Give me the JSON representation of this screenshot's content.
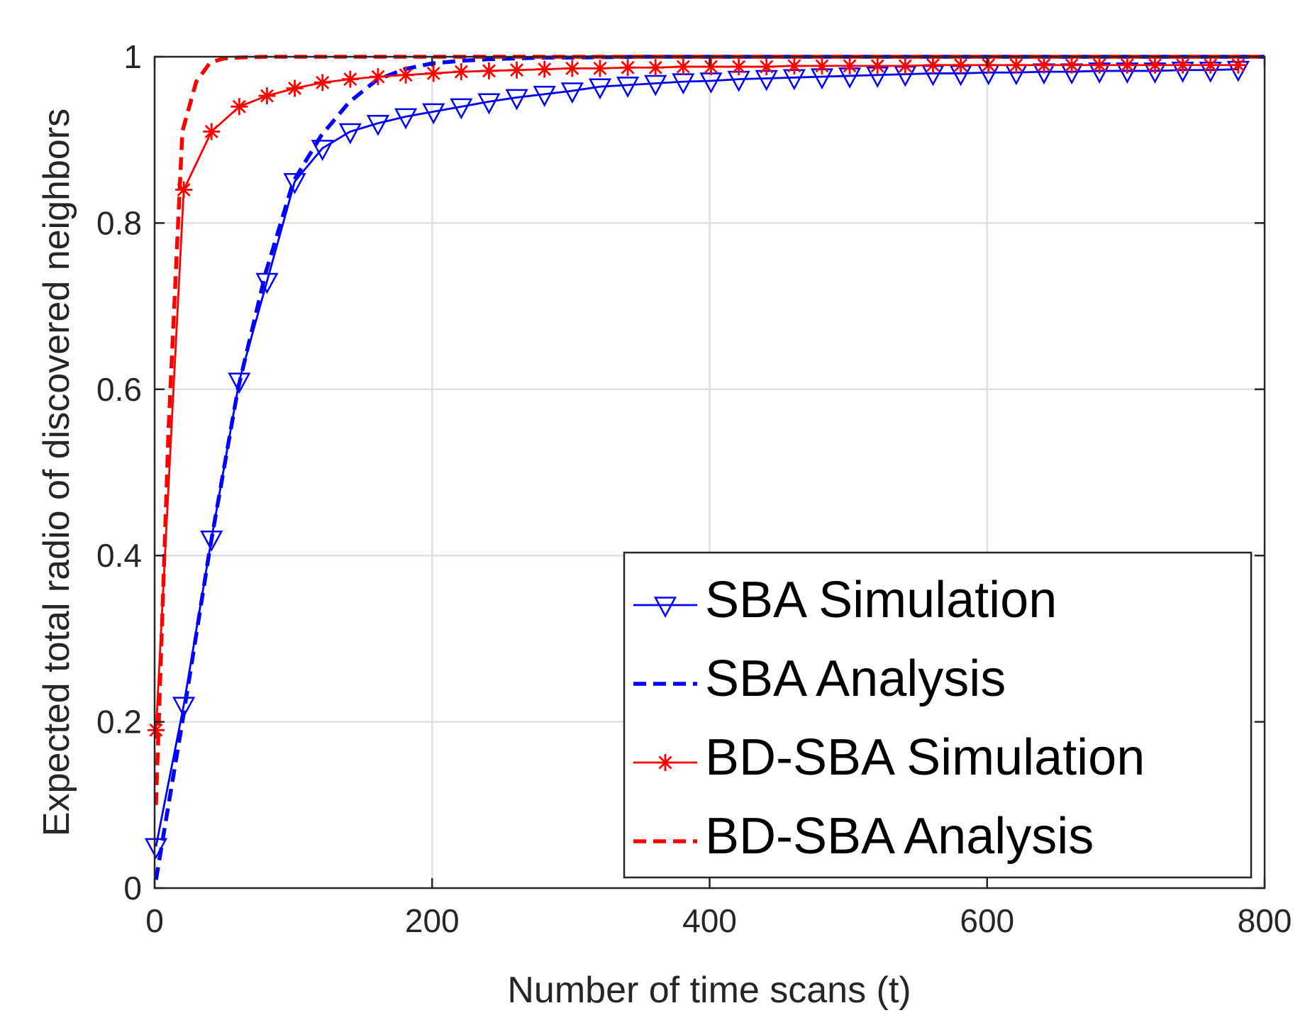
{
  "chart_data": {
    "type": "line",
    "title": "",
    "xlabel": "Number of time scans (t)",
    "ylabel": "Expected total radio of discovered neighbors",
    "xlim": [
      0,
      800
    ],
    "ylim": [
      0,
      1
    ],
    "xticks": [
      0,
      200,
      400,
      600,
      800
    ],
    "yticks": [
      0,
      0.2,
      0.4,
      0.6,
      0.8,
      1
    ],
    "xtick_labels": [
      "0",
      "200",
      "400",
      "600",
      "800"
    ],
    "ytick_labels": [
      "0",
      "0.2",
      "0.4",
      "0.6",
      "0.8",
      "1"
    ],
    "grid": true,
    "legend_position": "bottom-right",
    "series": [
      {
        "name": "SBA Simulation",
        "color": "#0000ff",
        "line": "solid",
        "marker": "triangle-down",
        "x": [
          1,
          21,
          41,
          61,
          81,
          101,
          121,
          141,
          161,
          181,
          201,
          221,
          241,
          261,
          281,
          301,
          321,
          341,
          361,
          381,
          401,
          421,
          441,
          461,
          481,
          501,
          521,
          541,
          561,
          581,
          601,
          621,
          641,
          661,
          681,
          701,
          721,
          741,
          761,
          781
        ],
        "y": [
          0.05,
          0.22,
          0.42,
          0.61,
          0.73,
          0.85,
          0.89,
          0.91,
          0.92,
          0.928,
          0.934,
          0.94,
          0.946,
          0.951,
          0.955,
          0.959,
          0.964,
          0.966,
          0.968,
          0.97,
          0.971,
          0.973,
          0.974,
          0.975,
          0.976,
          0.977,
          0.978,
          0.979,
          0.98,
          0.98,
          0.981,
          0.981,
          0.982,
          0.982,
          0.983,
          0.983,
          0.983,
          0.984,
          0.984,
          0.985
        ]
      },
      {
        "name": "SBA Analysis",
        "color": "#0000ff",
        "line": "dashed",
        "marker": "none",
        "x": [
          1,
          20,
          40,
          60,
          80,
          100,
          120,
          140,
          160,
          180,
          200,
          220,
          240,
          260,
          280,
          300,
          350,
          400,
          500,
          600,
          700,
          800
        ],
        "y": [
          0.01,
          0.2,
          0.41,
          0.6,
          0.74,
          0.85,
          0.905,
          0.945,
          0.972,
          0.985,
          0.992,
          0.995,
          0.997,
          0.998,
          0.999,
          0.999,
          1.0,
          1.0,
          1.0,
          1.0,
          1.0,
          1.0
        ]
      },
      {
        "name": "BD-SBA Simulation",
        "color": "#ff0000",
        "line": "solid",
        "marker": "asterisk",
        "x": [
          1,
          21,
          41,
          61,
          81,
          101,
          121,
          141,
          161,
          181,
          201,
          221,
          241,
          261,
          281,
          301,
          321,
          341,
          361,
          381,
          401,
          421,
          441,
          461,
          481,
          501,
          521,
          541,
          561,
          581,
          601,
          621,
          641,
          661,
          681,
          701,
          721,
          741,
          761,
          781
        ],
        "y": [
          0.19,
          0.84,
          0.91,
          0.94,
          0.953,
          0.962,
          0.969,
          0.973,
          0.976,
          0.978,
          0.98,
          0.982,
          0.983,
          0.984,
          0.985,
          0.986,
          0.986,
          0.987,
          0.987,
          0.988,
          0.988,
          0.988,
          0.988,
          0.989,
          0.989,
          0.989,
          0.989,
          0.989,
          0.99,
          0.99,
          0.99,
          0.99,
          0.99,
          0.99,
          0.99,
          0.99,
          0.99,
          0.99,
          0.99,
          0.99
        ]
      },
      {
        "name": "BD-SBA Analysis",
        "color": "#ff0000",
        "line": "dashed",
        "marker": "none",
        "x": [
          1,
          10,
          20,
          30,
          40,
          50,
          60,
          80,
          100,
          150,
          200,
          300,
          400,
          500,
          600,
          700,
          800
        ],
        "y": [
          0.1,
          0.55,
          0.91,
          0.97,
          0.993,
          0.998,
          0.999,
          1.0,
          1.0,
          1.0,
          1.0,
          1.0,
          1.0,
          1.0,
          1.0,
          1.0,
          1.0
        ]
      }
    ]
  }
}
